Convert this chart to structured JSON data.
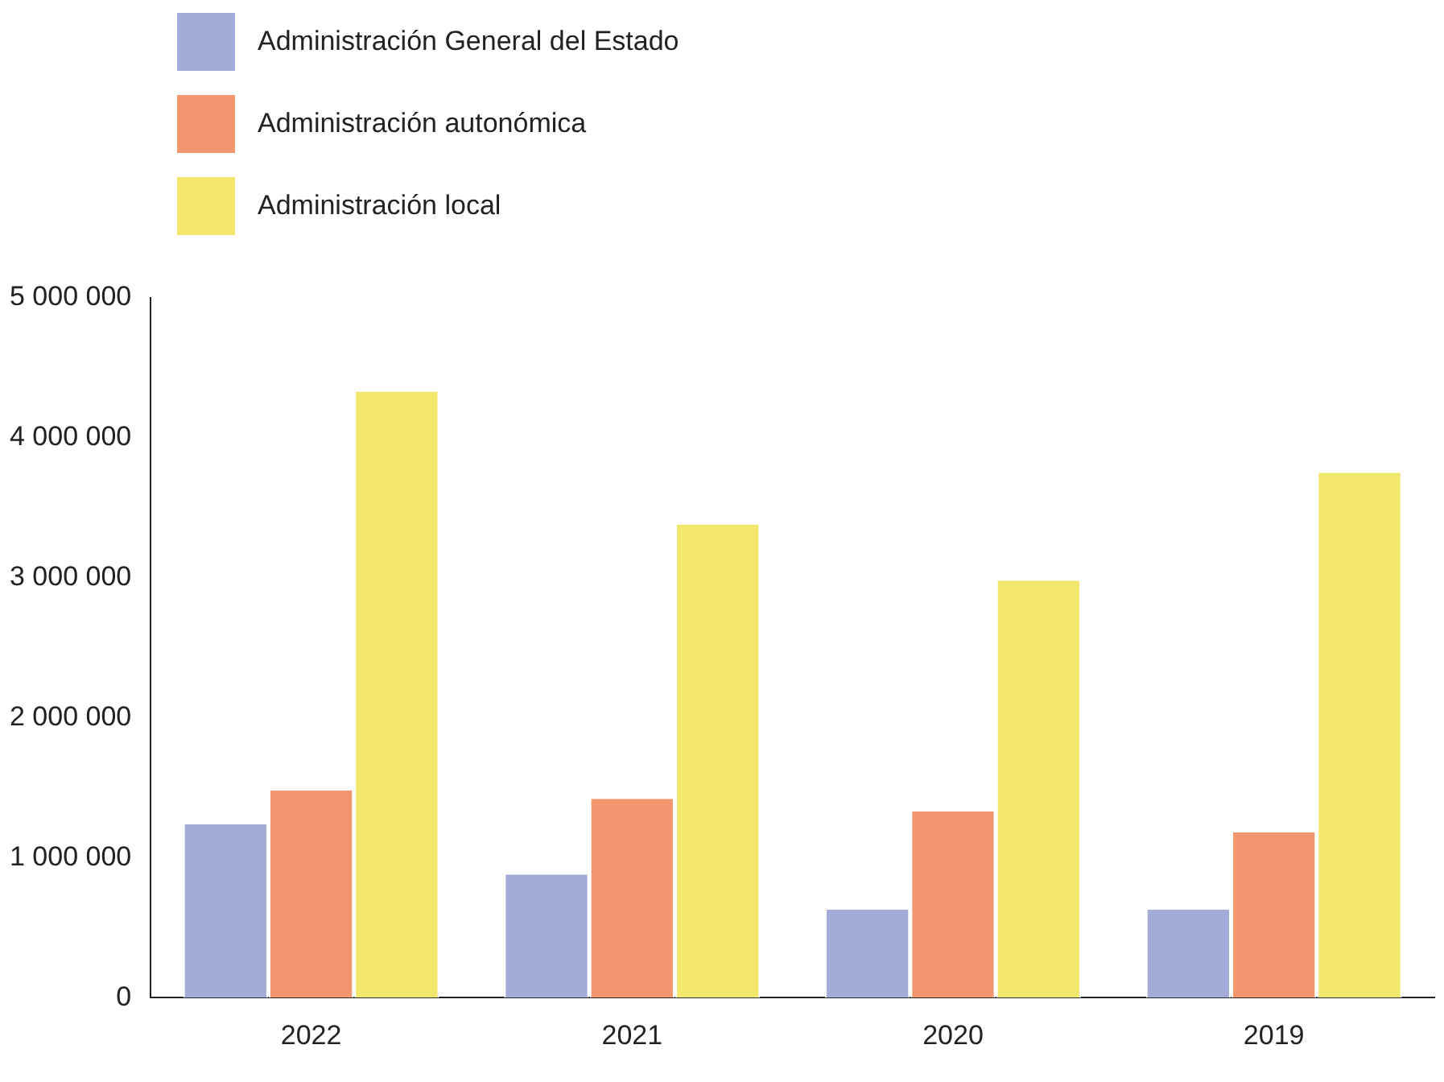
{
  "chart_data": {
    "type": "bar",
    "categories": [
      "2022",
      "2021",
      "2020",
      "2019"
    ],
    "series": [
      {
        "name": "Administración General del Estado",
        "color": "#a3acd9",
        "values": [
          1240000,
          880000,
          630000,
          630000
        ]
      },
      {
        "name": "Administración autonómica",
        "color": "#f29670",
        "values": [
          1480000,
          1420000,
          1330000,
          1180000
        ]
      },
      {
        "name": "Administración local",
        "color": "#f3e66c",
        "values": [
          4330000,
          3380000,
          2980000,
          3750000
        ]
      }
    ],
    "ylim": [
      0,
      5000000
    ],
    "yticks": [
      {
        "value": 0,
        "label": "0"
      },
      {
        "value": 1000000,
        "label": "1 000 000"
      },
      {
        "value": 2000000,
        "label": "2 000 000"
      },
      {
        "value": 3000000,
        "label": "3 000 000"
      },
      {
        "value": 4000000,
        "label": "4 000 000"
      },
      {
        "value": 5000000,
        "label": "5 000 000"
      }
    ],
    "grid": false,
    "legend": "top left"
  }
}
